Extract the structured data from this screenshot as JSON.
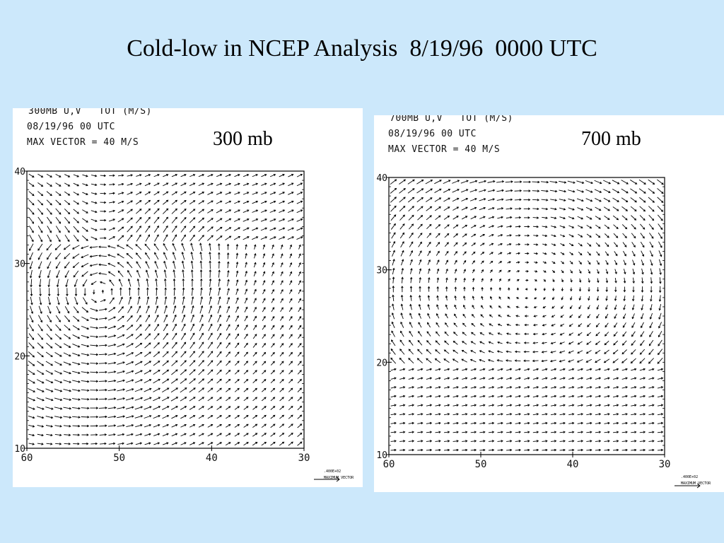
{
  "slide": {
    "title": "Cold-low in NCEP Analysis  8/19/96  0000 UTC"
  },
  "chart_data": [
    {
      "type": "vector-field",
      "level_label": "300 mb",
      "header": [
        "300MB U,V   TOT (M/S)",
        "08/19/96 00 UTC",
        "MAX VECTOR = 40 M/S"
      ],
      "x_ticks": [
        "60",
        "50",
        "40",
        "30"
      ],
      "y_ticks": [
        "40",
        "30",
        "20",
        "10"
      ],
      "xlim": [
        60,
        30
      ],
      "ylim": [
        10,
        40
      ],
      "max_vector_label": ".400E+02",
      "max_vector_caption": "MAXIMUM VECTOR",
      "flow_features": [
        {
          "kind": "cyclone",
          "lon": 52,
          "lat": 26.5,
          "strength": 1.0
        }
      ]
    },
    {
      "type": "vector-field",
      "level_label": "700 mb",
      "header": [
        "700MB U,V   TOT (M/S)",
        "08/19/96 00 UTC",
        "MAX VECTOR = 40 M/S"
      ],
      "x_ticks": [
        "60",
        "50",
        "40",
        "30"
      ],
      "y_ticks": [
        "40",
        "30",
        "20",
        "10"
      ],
      "xlim": [
        60,
        30
      ],
      "ylim": [
        10,
        40
      ],
      "max_vector_label": ".400E+02",
      "max_vector_caption": "MAXIMUM VECTOR",
      "flow_features": [
        {
          "kind": "anticyclone",
          "lon": 45,
          "lat": 30,
          "strength": 0.6
        }
      ]
    }
  ]
}
